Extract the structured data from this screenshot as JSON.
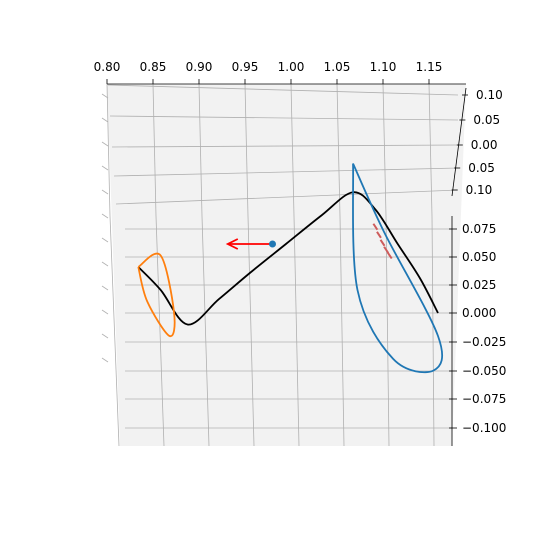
{
  "chart_data": {
    "type": "line",
    "projection": "3d",
    "title": "",
    "x_axis": {
      "label": "",
      "ticks": [
        "0.80",
        "0.85",
        "0.90",
        "0.95",
        "1.00",
        "1.05",
        "1.10",
        "1.15"
      ],
      "range": [
        0.8,
        1.17
      ]
    },
    "y_axis": {
      "label": "",
      "ticks": [
        "0.10",
        "0.05",
        "0.00",
        "0.05",
        "0.10"
      ],
      "range": [
        -0.1,
        0.1
      ]
    },
    "z_axis": {
      "label": "",
      "ticks": [
        "0.075",
        "0.050",
        "0.025",
        "0.000",
        "−0.025",
        "−0.050",
        "−0.075",
        "−0.100"
      ],
      "range": [
        -0.105,
        0.085
      ]
    },
    "grid": true,
    "series": [
      {
        "kind": "curve",
        "color": "#000000",
        "points": [
          [
            0.835,
            0.04
          ],
          [
            0.86,
            0.02
          ],
          [
            0.89,
            -0.01
          ],
          [
            0.925,
            0.012
          ],
          [
            0.96,
            0.035
          ],
          [
            1.0,
            0.06
          ],
          [
            1.04,
            0.085
          ],
          [
            1.075,
            0.105
          ],
          [
            1.1,
            0.09
          ],
          [
            1.125,
            0.06
          ],
          [
            1.15,
            0.03
          ],
          [
            1.17,
            0.0
          ]
        ]
      },
      {
        "kind": "loop",
        "color": "#ff7f0e",
        "points": [
          [
            0.835,
            0.04
          ],
          [
            0.86,
            0.05
          ],
          [
            0.875,
            0.0
          ],
          [
            0.87,
            -0.02
          ],
          [
            0.845,
            0.01
          ],
          [
            0.835,
            0.04
          ]
        ]
      },
      {
        "kind": "loop",
        "color": "#1f77b4",
        "points": [
          [
            1.075,
            0.13
          ],
          [
            1.11,
            0.07
          ],
          [
            1.17,
            -0.02
          ],
          [
            1.165,
            -0.05
          ],
          [
            1.12,
            -0.04
          ],
          [
            1.08,
            0.02
          ],
          [
            1.075,
            0.13
          ]
        ]
      },
      {
        "kind": "points",
        "color": "#cd5c5c",
        "points": [
          [
            1.1,
            0.075
          ],
          [
            1.104,
            0.068
          ],
          [
            1.108,
            0.061
          ],
          [
            1.112,
            0.055
          ],
          [
            1.116,
            0.05
          ]
        ]
      }
    ],
    "marker": {
      "color": "#1f77b4",
      "point": [
        0.985,
        0.06
      ]
    },
    "arrow": {
      "color": "#ff0000",
      "from": [
        0.985,
        0.06
      ],
      "to": [
        0.935,
        0.06
      ]
    }
  }
}
